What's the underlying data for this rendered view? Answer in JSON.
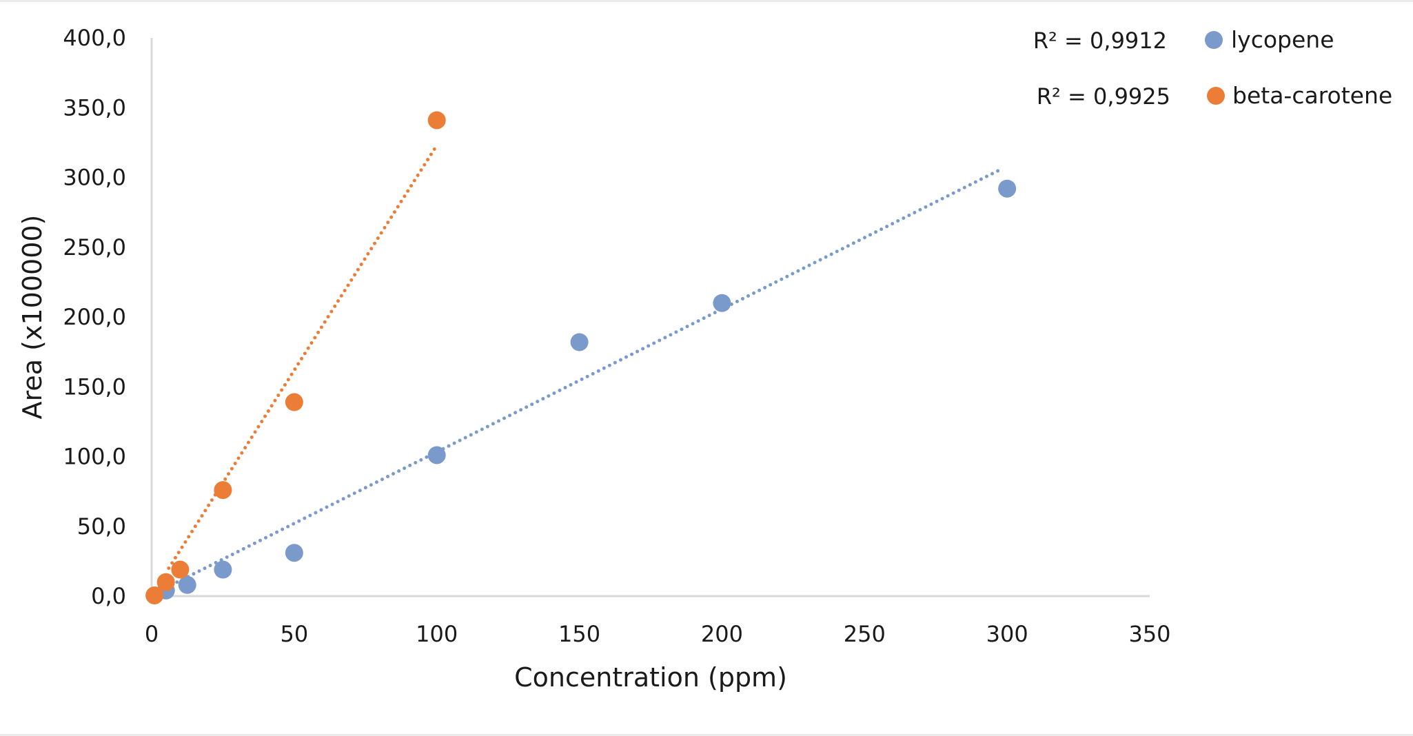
{
  "chart_data": {
    "type": "scatter",
    "title": "",
    "xlabel": "Concentration (ppm)",
    "ylabel": "Area (x100000)",
    "xlim": [
      0,
      350
    ],
    "ylim": [
      0,
      400
    ],
    "x_ticks": [
      "0",
      "50",
      "100",
      "150",
      "200",
      "250",
      "300",
      "350"
    ],
    "x_tick_values": [
      0,
      50,
      100,
      150,
      200,
      250,
      300,
      350
    ],
    "y_ticks": [
      "0,0",
      "50,0",
      "100,0",
      "150,0",
      "200,0",
      "250,0",
      "300,0",
      "350,0",
      "400,0"
    ],
    "y_tick_values": [
      0,
      50,
      100,
      150,
      200,
      250,
      300,
      350,
      400
    ],
    "grid": false,
    "legend_position": "top-right",
    "series": [
      {
        "name": "lycopene",
        "color": "#7a9acb",
        "points": [
          {
            "x": 5,
            "y": 4
          },
          {
            "x": 12.5,
            "y": 8
          },
          {
            "x": 25,
            "y": 19
          },
          {
            "x": 50,
            "y": 31
          },
          {
            "x": 100,
            "y": 101
          },
          {
            "x": 150,
            "y": 182
          },
          {
            "x": 200,
            "y": 210
          },
          {
            "x": 300,
            "y": 292
          }
        ],
        "trendline": {
          "style": "dotted",
          "x_start": 5,
          "y_start": 6,
          "x_end": 297,
          "y_end": 305
        },
        "r_squared": "R² = 0,9912"
      },
      {
        "name": "beta-carotene",
        "color": "#ec7d36",
        "points": [
          {
            "x": 1,
            "y": 0.5
          },
          {
            "x": 5,
            "y": 10
          },
          {
            "x": 10,
            "y": 19
          },
          {
            "x": 25,
            "y": 76
          },
          {
            "x": 50,
            "y": 139
          },
          {
            "x": 100,
            "y": 341
          }
        ],
        "trendline": {
          "style": "dotted",
          "x_start": 6,
          "y_start": 20,
          "x_end": 100,
          "y_end": 323
        },
        "r_squared": "R² = 0,9925"
      }
    ]
  }
}
